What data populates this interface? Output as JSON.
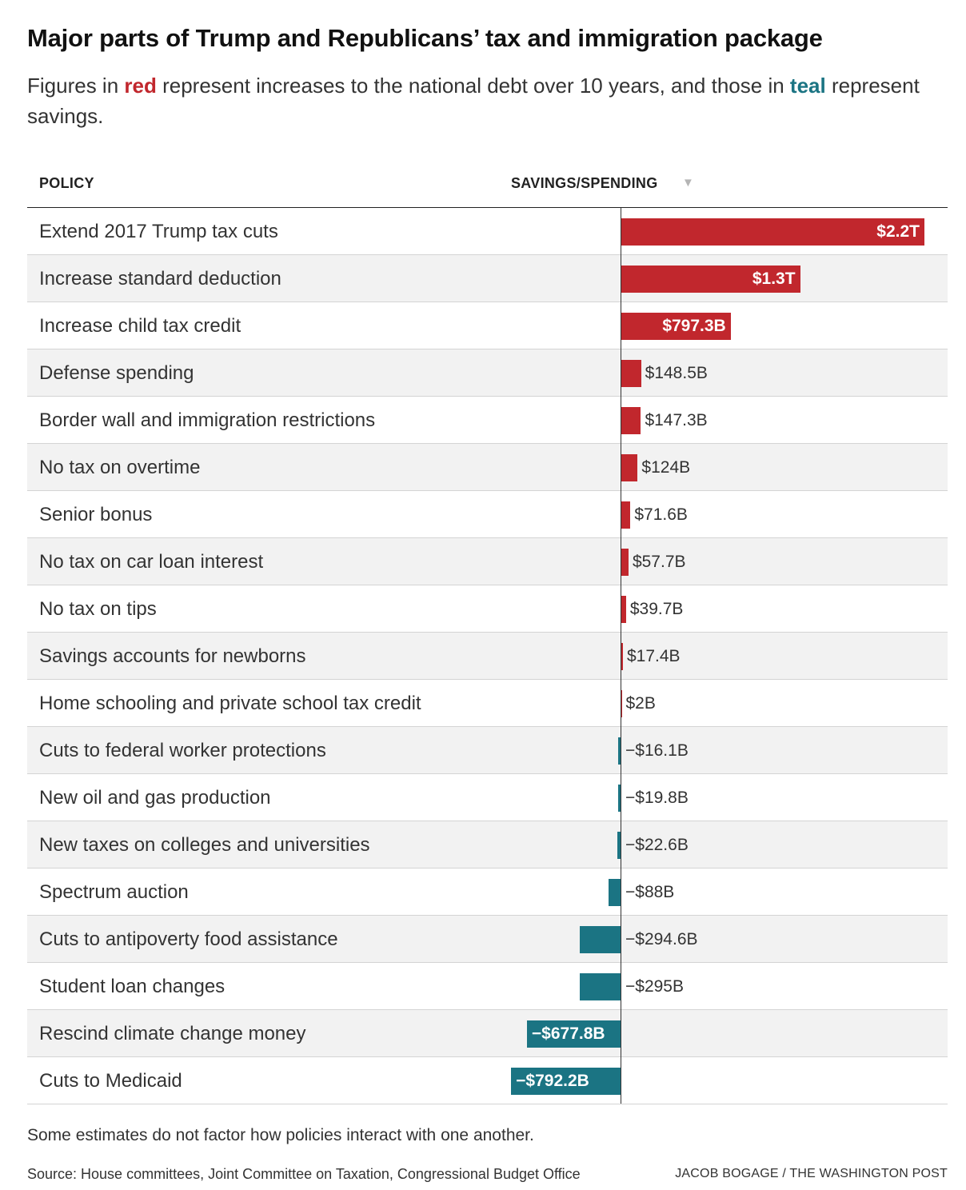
{
  "header": {
    "title": "Major parts of Trump and Republicans’ tax and immigration package",
    "subtitle_part1": "Figures in ",
    "subtitle_red": "red",
    "subtitle_part2": " represent increases to the national debt over 10 years, and those in ",
    "subtitle_teal": "teal",
    "subtitle_part3": " represent savings."
  },
  "table": {
    "col_policy": "POLICY",
    "col_value": "SAVINGS/SPENDING",
    "sort_icon": "sort-descending-triangle-icon"
  },
  "colors": {
    "increase": "#c1272d",
    "savings": "#1b7483"
  },
  "chart_data": {
    "type": "bar",
    "orientation": "horizontal",
    "unit": "USD, 10-year impact on national debt",
    "categories": [
      "Extend 2017 Trump tax cuts",
      "Increase standard deduction",
      "Increase child tax credit",
      "Defense spending",
      "Border wall and immigration restrictions",
      "No tax on overtime",
      "Senior bonus",
      "No tax on car loan interest",
      "No tax on tips",
      "Savings accounts for newborns",
      "Home schooling and private school tax credit",
      "Cuts to federal worker protections",
      "New oil and gas production",
      "New taxes on colleges and universities",
      "Spectrum auction",
      "Cuts to antipoverty food assistance",
      "Student loan changes",
      "Rescind climate change money",
      "Cuts to Medicaid"
    ],
    "values_billions": [
      2200,
      1300,
      797.3,
      148.5,
      147.3,
      124,
      71.6,
      57.7,
      39.7,
      17.4,
      2,
      -16.1,
      -19.8,
      -22.6,
      -88,
      -294.6,
      -295,
      -677.8,
      -792.2
    ],
    "labels": [
      "$2.2T",
      "$1.3T",
      "$797.3B",
      "$148.5B",
      "$147.3B",
      "$124B",
      "$71.6B",
      "$57.7B",
      "$39.7B",
      "$17.4B",
      "$2B",
      "−$16.1B",
      "−$19.8B",
      "−$22.6B",
      "−$88B",
      "−$294.6B",
      "−$295B",
      "−$677.8B",
      "−$792.2B"
    ],
    "sort": "descending"
  },
  "footer": {
    "note": "Some estimates do not factor how policies interact with one another.",
    "source": "Source: House committees, Joint Committee on Taxation, Congressional Budget Office",
    "credit": "JACOB BOGAGE / THE WASHINGTON POST"
  }
}
